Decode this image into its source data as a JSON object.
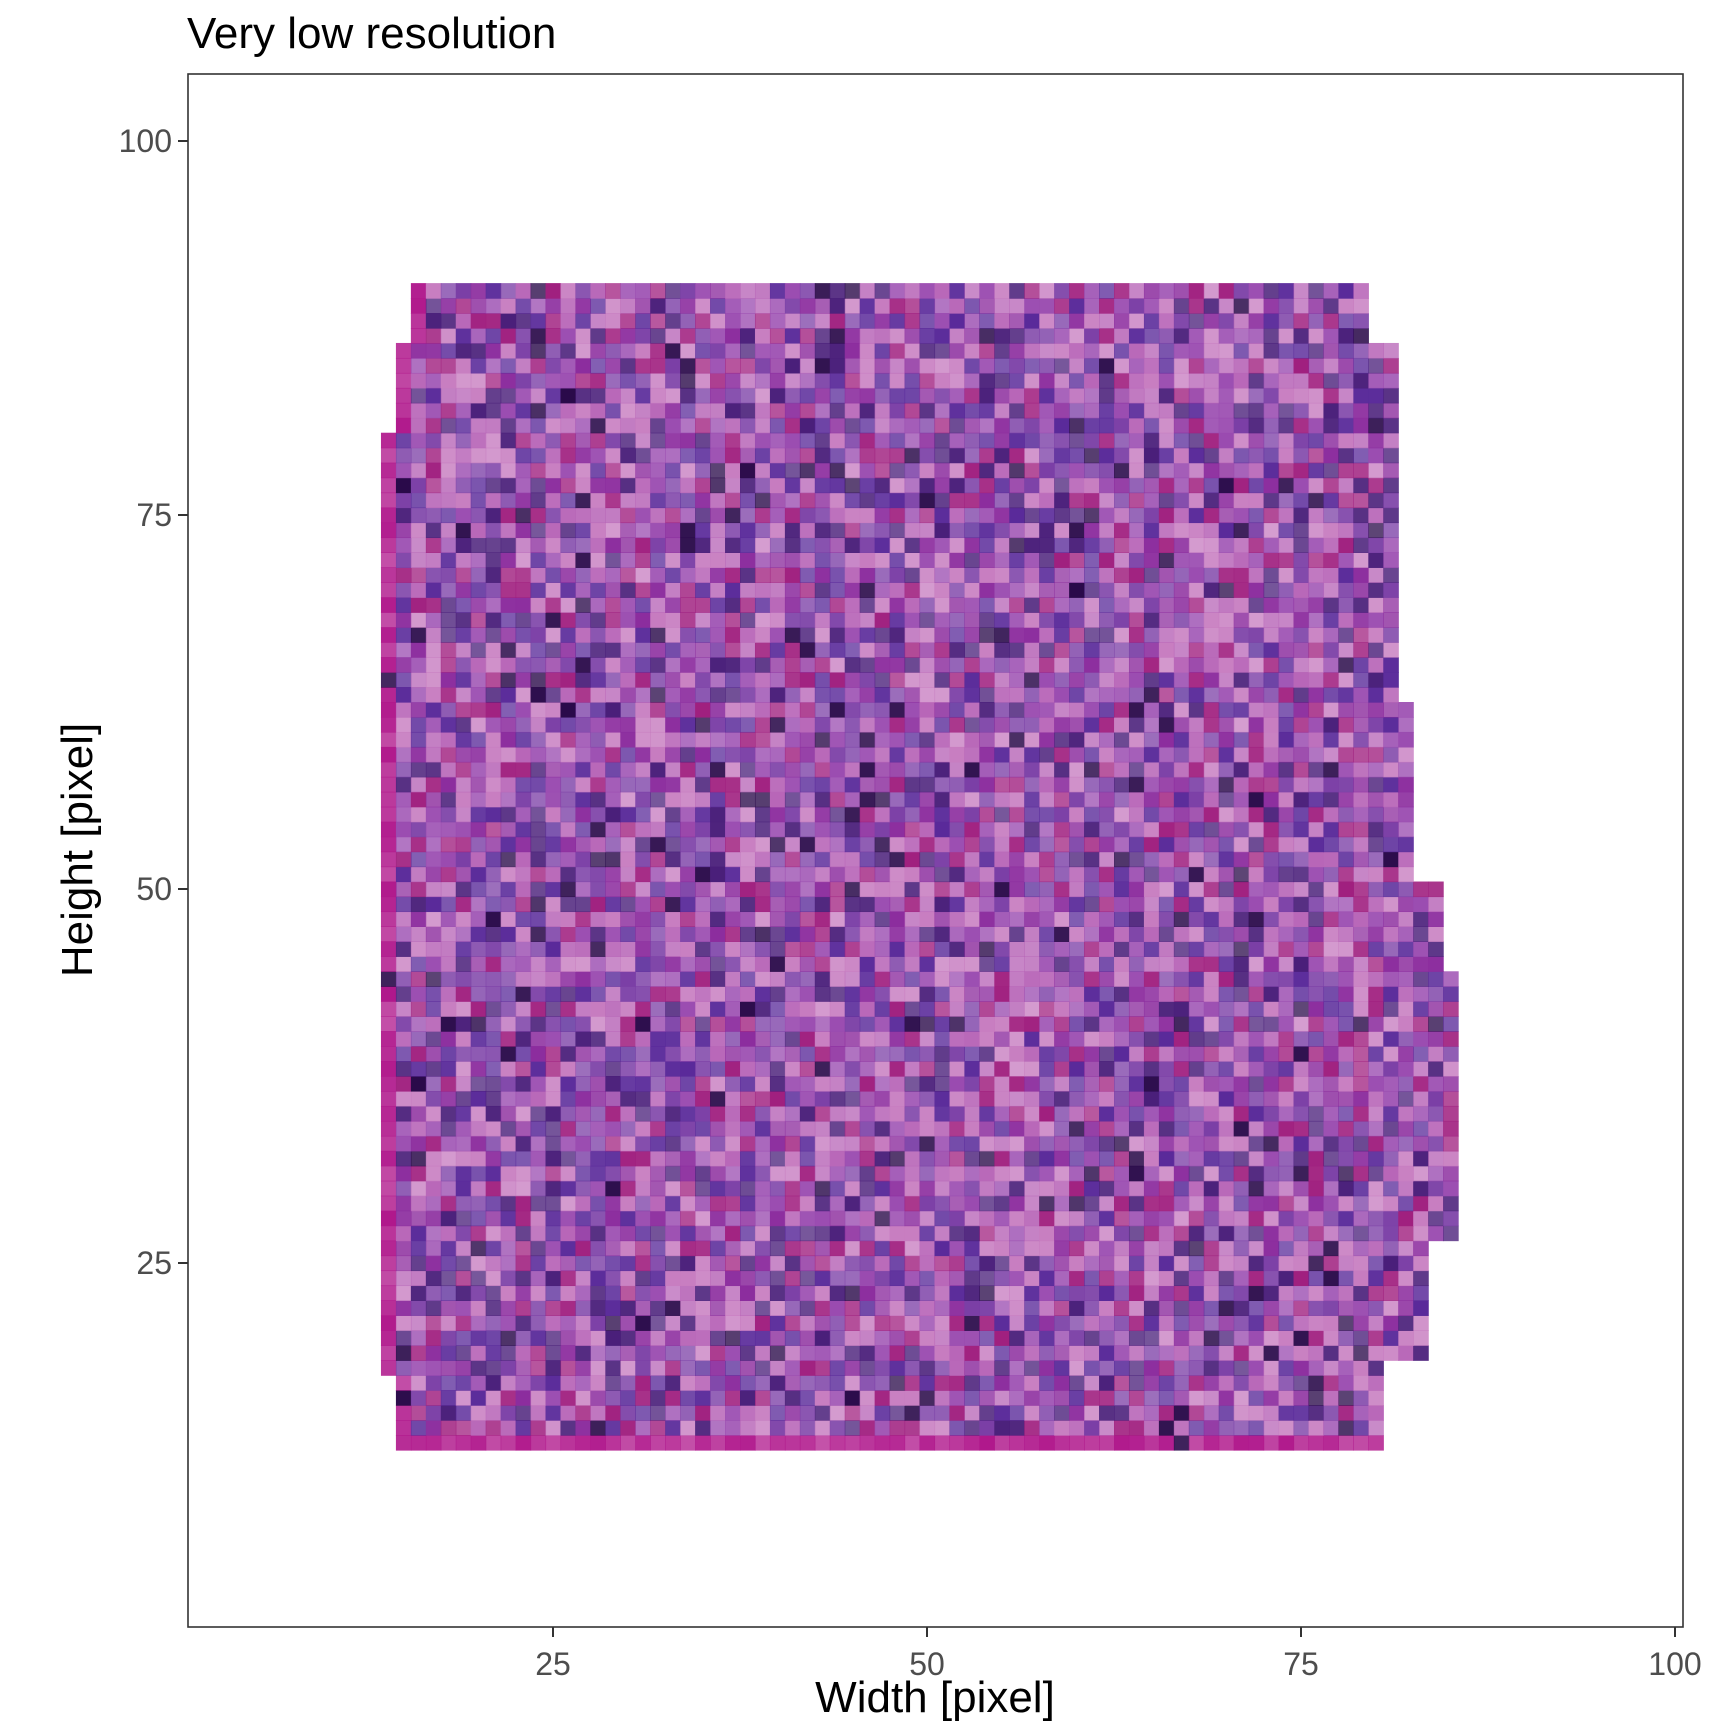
{
  "chart_data": {
    "type": "heatmap",
    "title": "Very low resolution",
    "xlabel": "Width [pixel]",
    "ylabel": "Height [pixel]",
    "xlim": [
      1,
      100
    ],
    "ylim": [
      1,
      105
    ],
    "x_ticks": [
      25,
      50,
      75,
      100
    ],
    "y_ticks": [
      25,
      50,
      75,
      100
    ],
    "grid": false,
    "legend": "none",
    "raster": {
      "description_of_values": "RGB color per 1x1 pixel cell of a downsampled purple-stained tissue image",
      "tissue_extent": {
        "x_min": 13,
        "x_max": 85,
        "y_min": 13,
        "y_max": 90
      },
      "dominant_colors": [
        "#7b3fa6",
        "#9a4bb0",
        "#5a2a9a",
        "#b866b8",
        "#8c2d9e",
        "#c77cc0",
        "#4a1f7a",
        "#a0207f"
      ],
      "edge_color": "#b0188c"
    }
  }
}
